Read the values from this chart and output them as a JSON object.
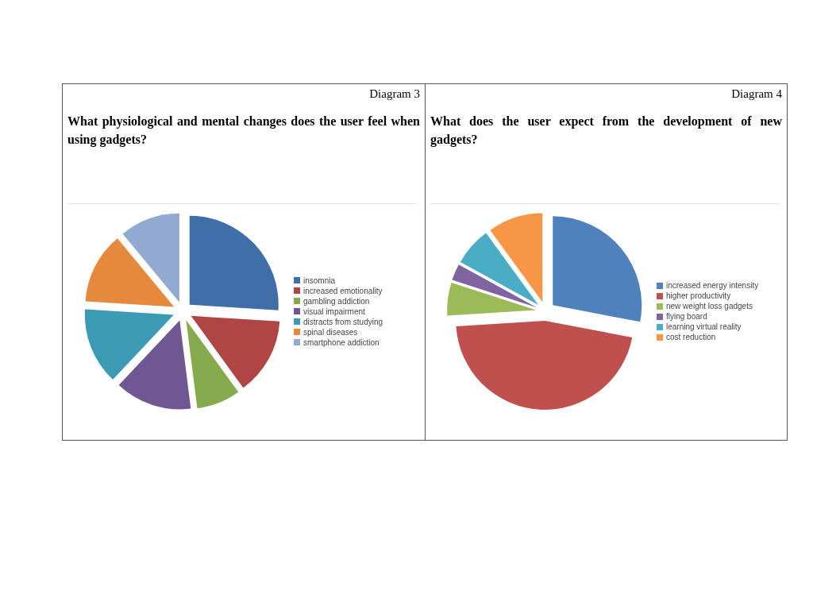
{
  "chart_data": [
    {
      "type": "pie",
      "annotations": [
        "Diagram 3"
      ],
      "title": "What physiological and mental changes does the user feel when using gadgets?",
      "categories": [
        "insomnia",
        "increased emotionality",
        "gambling addiction",
        "visual impairment",
        "distracts from studying",
        "spinal diseases",
        "smartphone addiction"
      ],
      "values": [
        26,
        14,
        8,
        14,
        14,
        13,
        11
      ],
      "colors": [
        "#3f6ea8",
        "#b04545",
        "#86ab4c",
        "#6e5793",
        "#3b9bb5",
        "#e58a3c",
        "#92a9d1"
      ],
      "legend": "right"
    },
    {
      "type": "pie",
      "annotations": [
        "Diagram 4"
      ],
      "title": "What does the user expect from the development of new gadgets?",
      "categories": [
        "increased energy intensity",
        "higher productivity",
        "new weight loss gadgets",
        "flying board",
        "learning virtual reality",
        "cost reduction"
      ],
      "values": [
        28,
        46,
        6,
        3,
        7,
        10
      ],
      "colors": [
        "#4f81bd",
        "#c0504d",
        "#9bbb59",
        "#8064a2",
        "#4bacc6",
        "#f79646"
      ],
      "legend": "right"
    }
  ]
}
